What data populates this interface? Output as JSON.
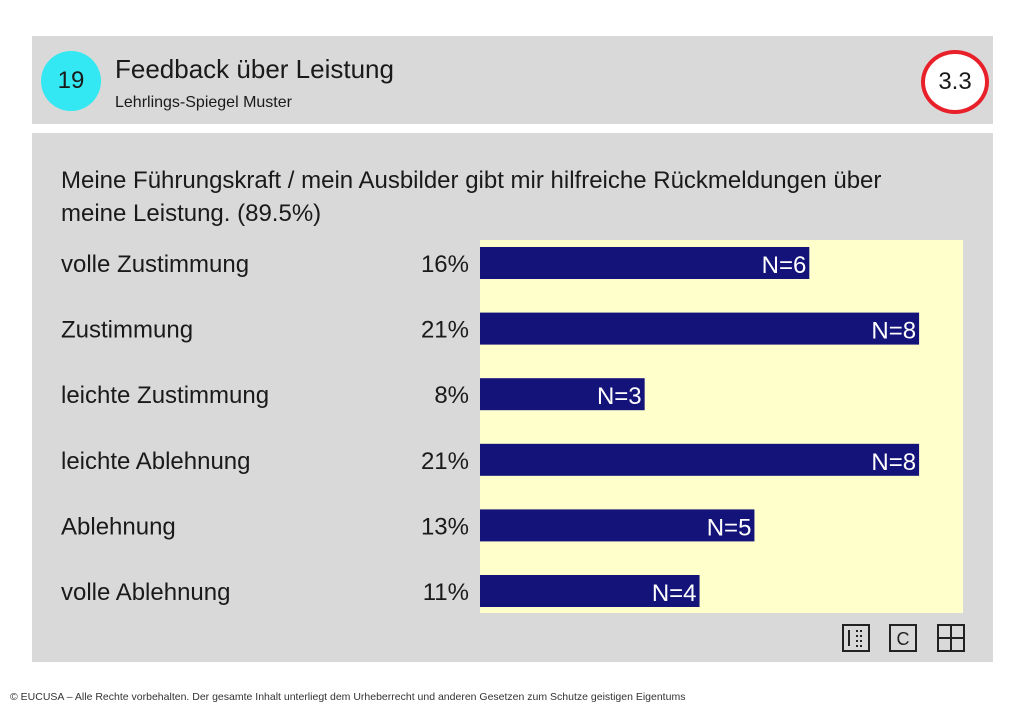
{
  "header": {
    "number": "19",
    "title": "Feedback über Leistung",
    "subtitle": "Lehrlings-Spiegel Muster",
    "section": "3.3"
  },
  "question": "Meine Führungskraft / mein Ausbilder gibt mir hilfreiche Rückmeldungen über meine Leistung. (89.5%)",
  "chart_data": {
    "type": "bar",
    "orientation": "horizontal",
    "categories": [
      "volle Zustimmung",
      "Zustimmung",
      "leichte Zustimmung",
      "leichte Ablehnung",
      "Ablehnung",
      "volle Ablehnung"
    ],
    "percent_labels": [
      "16%",
      "21%",
      "8%",
      "21%",
      "13%",
      "11%"
    ],
    "n_labels": [
      "N=6",
      "N=8",
      "N=3",
      "N=8",
      "N=5",
      "N=4"
    ],
    "values": [
      6,
      8,
      3,
      8,
      5,
      4
    ],
    "xlim": [
      0,
      8.8
    ],
    "bar_color": "#13137a",
    "plot_bg": "#ffffcc",
    "grid": false
  },
  "icons": [
    "list-icon",
    "c-icon",
    "grid-icon"
  ],
  "footer": "© EUCUSA – Alle Rechte vorbehalten. Der gesamte Inhalt unterliegt dem Urheberrecht und anderen Gesetzen zum Schutze geistigen Eigentums"
}
